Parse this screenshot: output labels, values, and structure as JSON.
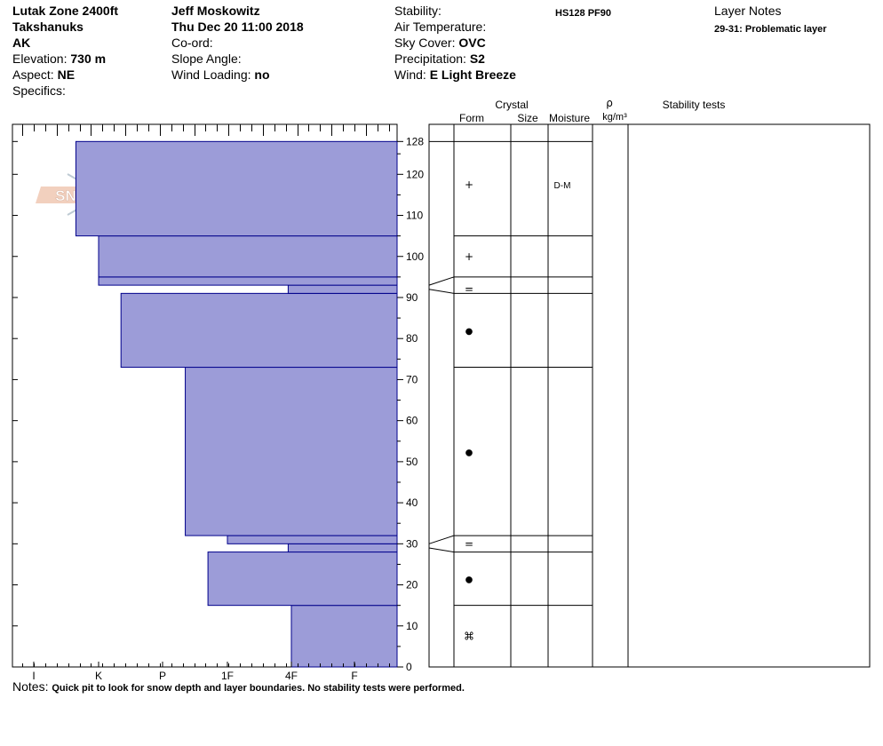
{
  "header": {
    "location": "Lutak Zone 2400ft",
    "range": "Takshanuks",
    "state": "AK",
    "elevation_label": "Elevation:",
    "elevation_value": "730 m",
    "aspect_label": "Aspect:",
    "aspect_value": "NE",
    "specifics_label": "Specifics:",
    "observer": "Jeff  Moskowitz",
    "datetime": "Thu Dec 20 11:00 2018",
    "coord_label": "Co-ord:",
    "slope_label": "Slope Angle:",
    "wind_loading_label": "Wind Loading:",
    "wind_loading_value": "no",
    "stability_label": "Stability:",
    "air_temp_label": "Air Temperature:",
    "sky_label": "Sky Cover:",
    "sky_value": "OVC",
    "precip_label": "Precipitation:",
    "precip_value": "S2",
    "wind_label": "Wind:",
    "wind_value": "E Light Breeze",
    "hs_pf": "HS128  PF90",
    "layer_notes_title": "Layer Notes",
    "layer_note": "29-31: Problematic layer"
  },
  "logo_text": "SNOW PILOT",
  "columns": {
    "crystal": "Crystal",
    "form": "Form",
    "size": "Size",
    "moisture": "Moisture",
    "rho": "ρ",
    "density_unit": "kg/m³",
    "stability_tests": "Stability tests"
  },
  "notes": {
    "label": "Notes:",
    "text": "Quick pit to look for snow depth and layer boundaries. No stability tests were performed."
  },
  "chart_data": {
    "type": "bar",
    "title": "",
    "xlabel": "",
    "ylabel": "",
    "hardness_scale": [
      "I",
      "K",
      "P",
      "1F",
      "4F",
      "F"
    ],
    "ylim": [
      0,
      130
    ],
    "yticks": [
      0,
      10,
      20,
      30,
      40,
      50,
      60,
      70,
      80,
      90,
      100,
      110,
      120,
      128
    ],
    "layers": [
      {
        "bottom": 0,
        "top": 15,
        "hardness_value": 4.0,
        "form": "rounding-faceted",
        "moisture": ""
      },
      {
        "bottom": 15,
        "top": 28,
        "hardness_value": 2.7,
        "form": "rounds",
        "moisture": ""
      },
      {
        "bottom": 28,
        "top": 30,
        "hardness_value": 3.95,
        "form": "surface-hoar",
        "moisture": ""
      },
      {
        "bottom": 30,
        "top": 32,
        "hardness_value": 3.0,
        "form": "",
        "moisture": ""
      },
      {
        "bottom": 32,
        "top": 73,
        "hardness_value": 2.35,
        "form": "rounds",
        "moisture": ""
      },
      {
        "bottom": 73,
        "top": 91,
        "hardness_value": 1.35,
        "form": "rounds",
        "moisture": ""
      },
      {
        "bottom": 91,
        "top": 93,
        "hardness_value": 3.95,
        "form": "surface-hoar",
        "moisture": ""
      },
      {
        "bottom": 93,
        "top": 95,
        "hardness_value": 1.0,
        "form": "",
        "moisture": ""
      },
      {
        "bottom": 95,
        "top": 105,
        "hardness_value": 1.0,
        "form": "precipitation-particles",
        "moisture": ""
      },
      {
        "bottom": 105,
        "top": 128,
        "hardness_value": 0.65,
        "form": "precipitation-particles",
        "moisture": "D-M"
      }
    ],
    "form_symbols": [
      {
        "height": 117.5,
        "glyph": "+"
      },
      {
        "height": 100,
        "glyph": "+"
      },
      {
        "height": 92,
        "glyph": "="
      },
      {
        "height": 82,
        "glyph": "●"
      },
      {
        "height": 52.5,
        "glyph": "●"
      },
      {
        "height": 30,
        "glyph": "="
      },
      {
        "height": 21.5,
        "glyph": "●"
      },
      {
        "height": 7.5,
        "glyph": "⌘"
      }
    ],
    "boundaries": [
      128,
      105,
      95,
      91,
      73,
      32,
      28,
      15
    ],
    "moisture_labels": [
      {
        "height": 117.5,
        "text": "D-M"
      }
    ],
    "colors": {
      "fill": "#9c9cd8",
      "stroke": "#00008b"
    }
  }
}
